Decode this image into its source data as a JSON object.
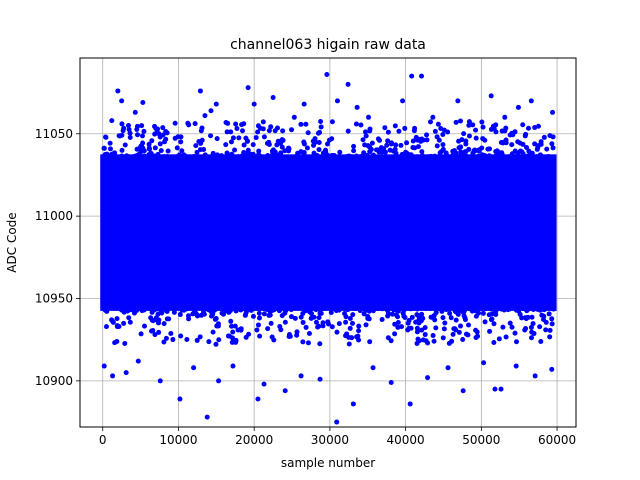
{
  "chart_data": {
    "type": "scatter",
    "title": "channel063 higain raw data",
    "xlabel": "sample number",
    "ylabel": "ADC Code",
    "xlim": [
      -3000,
      62500
    ],
    "ylim": [
      10872,
      11096
    ],
    "xticks": [
      0,
      10000,
      20000,
      30000,
      40000,
      50000,
      60000
    ],
    "xtick_labels": [
      "0",
      "10000",
      "20000",
      "30000",
      "40000",
      "50000",
      "60000"
    ],
    "yticks": [
      10900,
      10950,
      11000,
      11050
    ],
    "ytick_labels": [
      "10900",
      "10950",
      "11000",
      "11050"
    ],
    "grid": true,
    "legend": "none",
    "marker_color": "#0000ff",
    "series": [
      {
        "x_range": [
          0,
          59600
        ],
        "dense_band": [
          10944,
          11036
        ],
        "outliers": [
          [
            1200,
            11058
          ],
          [
            2000,
            11076
          ],
          [
            2500,
            11070
          ],
          [
            3400,
            11055
          ],
          [
            4300,
            11063
          ],
          [
            5300,
            11069
          ],
          [
            12900,
            11076
          ],
          [
            13500,
            11061
          ],
          [
            14300,
            11064
          ],
          [
            15000,
            11068
          ],
          [
            19200,
            11078
          ],
          [
            20000,
            11068
          ],
          [
            22500,
            11072
          ],
          [
            25300,
            11060
          ],
          [
            26600,
            11068
          ],
          [
            29600,
            11086
          ],
          [
            31000,
            11070
          ],
          [
            32400,
            11080
          ],
          [
            33600,
            11066
          ],
          [
            35100,
            11060
          ],
          [
            39600,
            11070
          ],
          [
            40800,
            11085
          ],
          [
            42100,
            11085
          ],
          [
            43600,
            11060
          ],
          [
            46900,
            11070
          ],
          [
            51300,
            11073
          ],
          [
            53100,
            11060
          ],
          [
            54900,
            11066
          ],
          [
            56600,
            11070
          ],
          [
            59400,
            11063
          ],
          [
            200,
            10909
          ],
          [
            1300,
            10903
          ],
          [
            3100,
            10905
          ],
          [
            4700,
            10912
          ],
          [
            7600,
            10900
          ],
          [
            10200,
            10889
          ],
          [
            12000,
            10908
          ],
          [
            13800,
            10878
          ],
          [
            15300,
            10900
          ],
          [
            17200,
            10909
          ],
          [
            20500,
            10889
          ],
          [
            21300,
            10898
          ],
          [
            24100,
            10894
          ],
          [
            26200,
            10903
          ],
          [
            28700,
            10901
          ],
          [
            30900,
            10875
          ],
          [
            33100,
            10886
          ],
          [
            35700,
            10908
          ],
          [
            38100,
            10899
          ],
          [
            40600,
            10886
          ],
          [
            42900,
            10902
          ],
          [
            45600,
            10908
          ],
          [
            47600,
            10894
          ],
          [
            50300,
            10911
          ],
          [
            51800,
            10895
          ],
          [
            52600,
            10895
          ],
          [
            54600,
            10909
          ],
          [
            57100,
            10903
          ],
          [
            59300,
            10907
          ]
        ]
      }
    ]
  }
}
